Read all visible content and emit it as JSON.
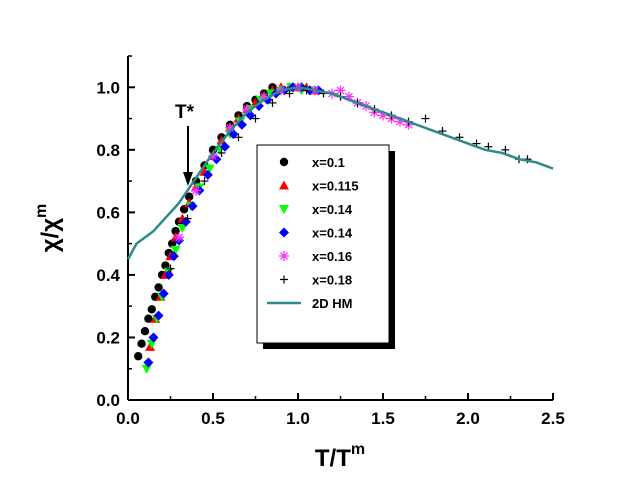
{
  "chart_data": {
    "type": "scatter",
    "xlabel": "T/T",
    "xlabel_sup": "m",
    "ylabel": "χ/χ",
    "ylabel_sup": "m",
    "xlim": [
      0,
      2.5
    ],
    "ylim": [
      0,
      1.1
    ],
    "xticks": [
      "0.0",
      "0.5",
      "1.0",
      "1.5",
      "2.0",
      "2.5"
    ],
    "yticks": [
      "0.0",
      "0.2",
      "0.4",
      "0.6",
      "0.8",
      "1.0"
    ],
    "xtick_values": [
      0,
      0.5,
      1.0,
      1.5,
      2.0,
      2.5
    ],
    "ytick_values": [
      0,
      0.2,
      0.4,
      0.6,
      0.8,
      1.0
    ],
    "annotation": {
      "text": "T*",
      "x": 0.35,
      "y": 0.69
    },
    "series": [
      {
        "name": "x=0.1",
        "marker": "circle",
        "color": "#000000",
        "x": [
          0.06,
          0.08,
          0.1,
          0.12,
          0.14,
          0.16,
          0.18,
          0.2,
          0.22,
          0.24,
          0.26,
          0.28,
          0.3,
          0.33,
          0.36,
          0.4,
          0.45,
          0.5,
          0.55,
          0.6,
          0.65,
          0.7,
          0.75,
          0.8,
          0.85
        ],
        "y": [
          0.14,
          0.18,
          0.22,
          0.26,
          0.29,
          0.33,
          0.36,
          0.4,
          0.43,
          0.47,
          0.5,
          0.54,
          0.57,
          0.61,
          0.65,
          0.7,
          0.75,
          0.8,
          0.84,
          0.88,
          0.91,
          0.94,
          0.96,
          0.98,
          1.0
        ]
      },
      {
        "name": "x=0.115",
        "marker": "triangle-up",
        "color": "#ff0000",
        "x": [
          0.13,
          0.16,
          0.19,
          0.22,
          0.25,
          0.28,
          0.32,
          0.36,
          0.4,
          0.45,
          0.5,
          0.55,
          0.6,
          0.65,
          0.7,
          0.75,
          0.8,
          0.85,
          0.9,
          0.95,
          1.0,
          1.05,
          1.1
        ],
        "y": [
          0.17,
          0.26,
          0.33,
          0.4,
          0.46,
          0.52,
          0.58,
          0.63,
          0.68,
          0.73,
          0.78,
          0.83,
          0.87,
          0.9,
          0.93,
          0.95,
          0.97,
          0.99,
          1.0,
          1.0,
          1.0,
          1.0,
          0.99
        ]
      },
      {
        "name": "x=0.14",
        "marker": "triangle-down",
        "color": "#00ff00",
        "x": [
          0.11,
          0.14,
          0.17,
          0.2,
          0.24,
          0.28,
          0.32,
          0.37,
          0.42,
          0.48,
          0.54,
          0.6,
          0.66,
          0.72,
          0.78,
          0.84,
          0.9,
          0.96,
          1.02,
          1.08
        ],
        "y": [
          0.1,
          0.18,
          0.26,
          0.33,
          0.41,
          0.48,
          0.55,
          0.62,
          0.68,
          0.74,
          0.8,
          0.85,
          0.89,
          0.93,
          0.96,
          0.98,
          0.99,
          1.0,
          0.99,
          0.99
        ]
      },
      {
        "name": "x=0.14",
        "marker": "diamond",
        "color": "#0000ff",
        "x": [
          0.12,
          0.15,
          0.18,
          0.21,
          0.24,
          0.27,
          0.3,
          0.34,
          0.38,
          0.42,
          0.47,
          0.52,
          0.57,
          0.62,
          0.67,
          0.72,
          0.77,
          0.82,
          0.87,
          0.92,
          0.97,
          1.02,
          1.07,
          1.12
        ],
        "y": [
          0.12,
          0.2,
          0.27,
          0.34,
          0.4,
          0.46,
          0.51,
          0.57,
          0.62,
          0.67,
          0.72,
          0.77,
          0.81,
          0.85,
          0.88,
          0.91,
          0.94,
          0.96,
          0.98,
          0.99,
          1.0,
          1.0,
          0.99,
          0.99
        ]
      },
      {
        "name": "x=0.16",
        "marker": "asterisk",
        "color": "#ff33ff",
        "x": [
          0.3,
          0.4,
          0.5,
          0.6,
          0.7,
          0.8,
          0.9,
          1.0,
          1.1,
          1.2,
          1.25,
          1.3,
          1.35,
          1.4,
          1.45,
          1.5,
          1.55,
          1.6,
          1.65
        ],
        "y": [
          0.52,
          0.67,
          0.78,
          0.87,
          0.93,
          0.97,
          0.99,
          1.0,
          0.99,
          0.98,
          0.99,
          0.97,
          0.95,
          0.94,
          0.92,
          0.91,
          0.9,
          0.89,
          0.88
        ]
      },
      {
        "name": "x=0.18",
        "marker": "plus",
        "color": "#000000",
        "x": [
          0.25,
          0.35,
          0.45,
          0.55,
          0.65,
          0.75,
          0.85,
          0.95,
          1.05,
          1.15,
          1.25,
          1.35,
          1.45,
          1.55,
          1.65,
          1.75,
          1.85,
          1.95,
          2.05,
          2.12,
          2.22,
          2.3,
          2.35
        ],
        "y": [
          0.42,
          0.58,
          0.7,
          0.79,
          0.84,
          0.9,
          0.95,
          0.98,
          0.99,
          0.98,
          0.97,
          0.95,
          0.93,
          0.91,
          0.89,
          0.9,
          0.86,
          0.84,
          0.82,
          0.81,
          0.8,
          0.77,
          0.77
        ]
      },
      {
        "name": "2D HM",
        "marker": "line",
        "color": "#2e8b8b",
        "x": [
          0.0,
          0.05,
          0.1,
          0.15,
          0.2,
          0.25,
          0.3,
          0.35,
          0.4,
          0.5,
          0.6,
          0.7,
          0.8,
          0.9,
          1.0,
          1.1,
          1.2,
          1.3,
          1.4,
          1.5,
          1.6,
          1.7,
          1.8,
          1.9,
          2.0,
          2.1,
          2.2,
          2.3,
          2.4,
          2.5
        ],
        "y": [
          0.45,
          0.5,
          0.52,
          0.54,
          0.57,
          0.6,
          0.63,
          0.67,
          0.71,
          0.79,
          0.86,
          0.92,
          0.96,
          0.99,
          1.0,
          0.99,
          0.98,
          0.96,
          0.94,
          0.92,
          0.9,
          0.88,
          0.86,
          0.84,
          0.82,
          0.8,
          0.79,
          0.77,
          0.76,
          0.74
        ]
      }
    ],
    "legend": {
      "entries": [
        "x=0.1",
        "x=0.115",
        "x=0.14",
        "x=0.14",
        "x=0.16",
        "x=0.18",
        "2D HM"
      ]
    }
  }
}
